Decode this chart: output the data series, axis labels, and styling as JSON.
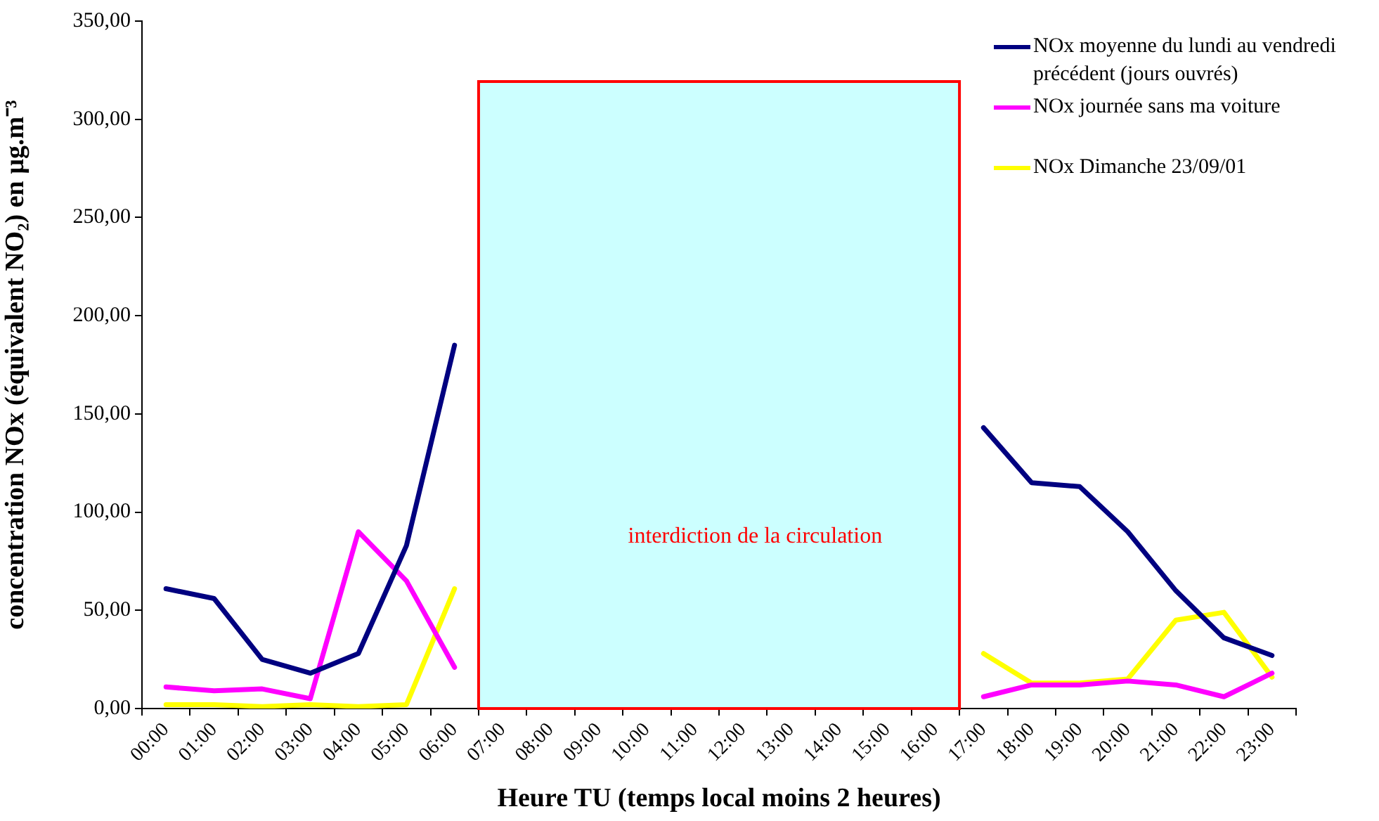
{
  "chart_data": {
    "type": "line",
    "xlabel": "Heure TU (temps local moins 2 heures)",
    "ylabel": "concentration NOx (équivalent NO₂) en µg.m⁻³",
    "categories": [
      "00:00",
      "01:00",
      "02:00",
      "03:00",
      "04:00",
      "05:00",
      "06:00",
      "07:00",
      "08:00",
      "09:00",
      "10:00",
      "11:00",
      "12:00",
      "13:00",
      "14:00",
      "15:00",
      "16:00",
      "17:00",
      "18:00",
      "19:00",
      "20:00",
      "21:00",
      "22:00",
      "23:00"
    ],
    "series": [
      {
        "name": "NOx moyenne du lundi au vendredi précédent (jours ouvrés)",
        "color": "#000080",
        "values": [
          61,
          56,
          25,
          18,
          28,
          83,
          185,
          null,
          null,
          null,
          null,
          null,
          null,
          null,
          null,
          null,
          null,
          143,
          115,
          113,
          90,
          60,
          36,
          27
        ]
      },
      {
        "name": "NOx journée sans ma voiture",
        "color": "#ff00ff",
        "values": [
          11,
          9,
          10,
          5,
          90,
          65,
          21,
          null,
          null,
          null,
          null,
          null,
          null,
          null,
          null,
          null,
          null,
          6,
          12,
          12,
          14,
          12,
          6,
          18
        ]
      },
      {
        "name": "NOx Dimanche 23/09/01",
        "color": "#ffff00",
        "values": [
          2,
          2,
          1,
          2,
          1,
          2,
          61,
          null,
          null,
          null,
          null,
          null,
          null,
          null,
          null,
          null,
          null,
          28,
          13,
          13,
          15,
          45,
          49,
          16
        ]
      }
    ],
    "ylim": [
      0,
      350
    ],
    "yticks": [
      {
        "value": 0,
        "label": "0,00"
      },
      {
        "value": 50,
        "label": "50,00"
      },
      {
        "value": 100,
        "label": "100,00"
      },
      {
        "value": 150,
        "label": "150,00"
      },
      {
        "value": 200,
        "label": "200,00"
      },
      {
        "value": 250,
        "label": "250,00"
      },
      {
        "value": 300,
        "label": "300,00"
      },
      {
        "value": 350,
        "label": "350,00"
      }
    ],
    "bands": [
      {
        "axis": "x",
        "from": "07:00",
        "to": "16:00",
        "label": "interdiction de la circulation",
        "color": "#ccffff"
      }
    ],
    "legend": "top right",
    "grid": false,
    "marker": "none",
    "line_style": "solid"
  }
}
